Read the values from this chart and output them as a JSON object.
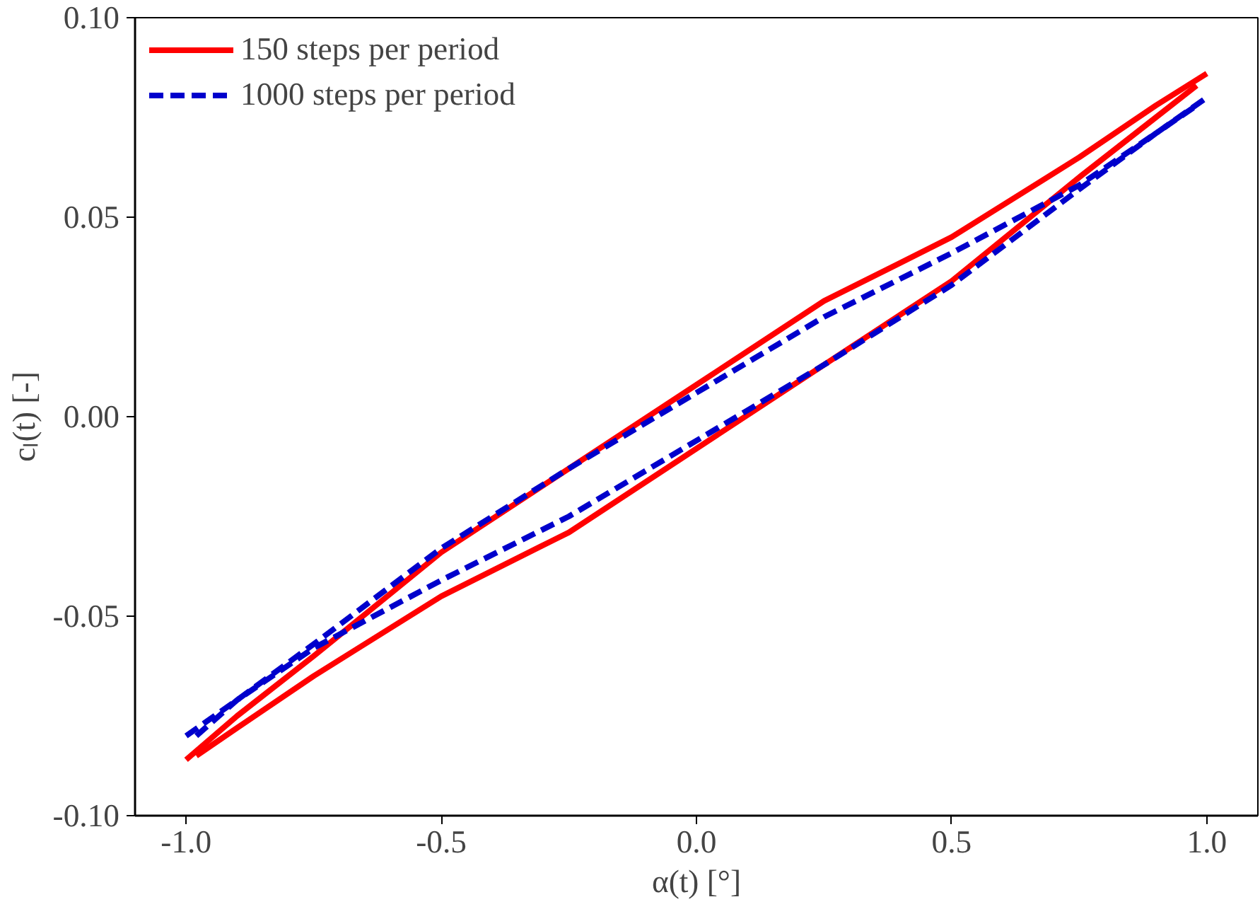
{
  "chart_data": {
    "type": "line",
    "xlabel": "α(t) [°]",
    "ylabel": "cₗ(t) [-]",
    "xlim": [
      -1.1,
      1.1
    ],
    "ylim": [
      -0.1,
      0.1
    ],
    "xticks": [
      {
        "value": -1.0,
        "label": "-1.0"
      },
      {
        "value": -0.5,
        "label": "-0.5"
      },
      {
        "value": 0.0,
        "label": "0.0"
      },
      {
        "value": 0.5,
        "label": "0.5"
      },
      {
        "value": 1.0,
        "label": "1.0"
      }
    ],
    "yticks": [
      {
        "value": -0.1,
        "label": "-0.10"
      },
      {
        "value": -0.05,
        "label": "-0.05"
      },
      {
        "value": 0.0,
        "label": "0.00"
      },
      {
        "value": 0.05,
        "label": "0.05"
      },
      {
        "value": 0.1,
        "label": "0.10"
      }
    ],
    "grid": false,
    "legend": "top left",
    "series": [
      {
        "name": "150 steps per period",
        "color": "#ff0000",
        "line_style": "solid",
        "x": [
          -1.0,
          -0.9,
          -0.75,
          -0.5,
          -0.25,
          0.0,
          0.25,
          0.5,
          0.75,
          0.9,
          1.0
        ],
        "values": [
          -0.086,
          -0.075,
          -0.06,
          -0.034,
          -0.013,
          0.008,
          0.029,
          0.045,
          0.065,
          0.078,
          0.086
        ]
      },
      {
        "color": "#ff0000",
        "line_style": "solid",
        "x": [
          -0.98,
          -0.9,
          -0.75,
          -0.5,
          -0.25,
          0.0,
          0.25,
          0.5,
          0.75,
          0.9,
          0.98
        ],
        "values": [
          -0.085,
          -0.078,
          -0.065,
          -0.045,
          -0.029,
          -0.008,
          0.013,
          0.034,
          0.06,
          0.075,
          0.083
        ]
      },
      {
        "name": "1000 steps per period",
        "color": "#0000cc",
        "line_style": "dashed",
        "x": [
          -1.0,
          -0.9,
          -0.75,
          -0.5,
          -0.25,
          0.0,
          0.25,
          0.5,
          0.75,
          0.9,
          1.0
        ],
        "values": [
          -0.08,
          -0.071,
          -0.057,
          -0.033,
          -0.013,
          0.006,
          0.025,
          0.041,
          0.058,
          0.071,
          0.08
        ]
      },
      {
        "color": "#0000cc",
        "line_style": "dashed",
        "x": [
          -0.98,
          -0.9,
          -0.75,
          -0.5,
          -0.25,
          0.0,
          0.25,
          0.5,
          0.75,
          0.9,
          0.98
        ],
        "values": [
          -0.08,
          -0.071,
          -0.058,
          -0.041,
          -0.025,
          -0.006,
          0.013,
          0.033,
          0.057,
          0.071,
          0.078
        ]
      }
    ]
  }
}
